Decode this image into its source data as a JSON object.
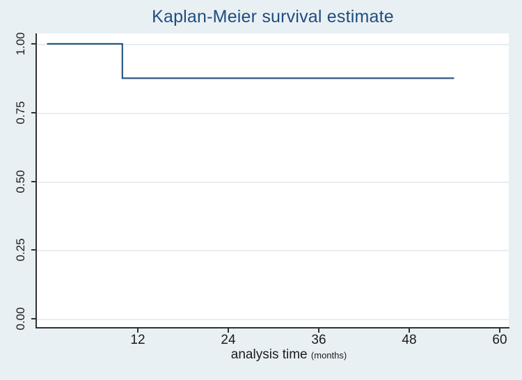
{
  "figure": {
    "background": "#e9f0f4",
    "title": "Kaplan-Meier survival estimate",
    "title_color": "#1f4d80"
  },
  "axes": {
    "y_tick_labels": [
      "1.00",
      "0.75",
      "0.50",
      "0.25",
      "0.00"
    ],
    "x_tick_labels": [
      "12",
      "24",
      "36",
      "48",
      "60"
    ],
    "x_label": "analysis time",
    "x_label_sub": "(months)"
  },
  "chart_data": {
    "type": "line",
    "subtype": "kaplan-meier-step",
    "title": "Kaplan-Meier survival estimate",
    "xlabel": "analysis time (months)",
    "ylabel": "",
    "xlim": [
      0,
      60
    ],
    "x_ticks": [
      12,
      24,
      36,
      48,
      60
    ],
    "y_ticks": [
      0.0,
      0.25,
      0.5,
      0.75,
      1.0
    ],
    "grid": "horizontal",
    "legend": "none",
    "line_color": "#2b5784",
    "series": [
      {
        "name": "Kaplan-Meier survival estimate",
        "points": [
          {
            "x": 0,
            "y": 1.0
          },
          {
            "x": 10,
            "y": 1.0
          },
          {
            "x": 10,
            "y": 0.875
          },
          {
            "x": 54,
            "y": 0.875
          }
        ]
      }
    ]
  }
}
